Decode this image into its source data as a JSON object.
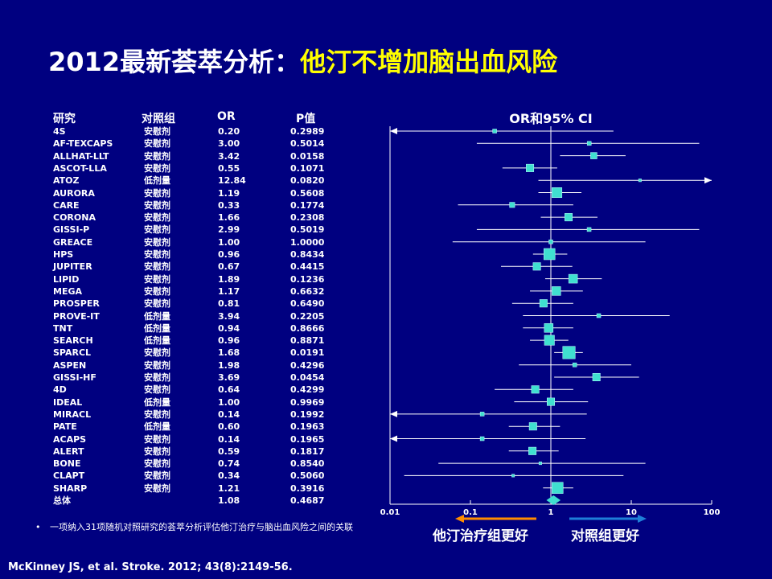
{
  "slide": {
    "title_prefix": "2012最新荟萃分析：",
    "title_highlight": "他汀不增加脑出血风险",
    "headers": {
      "study": "研究",
      "control": "对照组",
      "or": "OR",
      "p": "P值"
    },
    "footnote_bullet": "•",
    "footnote": "一项纳入31项随机对照研究的荟萃分析评估他汀治疗与脑出血风险之间的关联",
    "citation": "McKinney JS, et al. Stroke. 2012; 43(8):2149-56.",
    "favors_left": "他汀治疗组更好",
    "favors_right": "对照组更好",
    "colors": {
      "background": "#000080",
      "highlight": "#ffff00",
      "box": "#40e0d0",
      "arrow_left": "#ff8c00",
      "arrow_right": "#1e7fd8"
    }
  },
  "chart_data": {
    "type": "forest",
    "title": "OR和95% CI",
    "x_scale": "log",
    "xlim": [
      0.01,
      100
    ],
    "x_ticks": [
      0.01,
      0.1,
      1,
      10,
      100
    ],
    "x_tick_labels": [
      "0.01",
      "0.1",
      "1",
      "10",
      "100"
    ],
    "reference_line": 1,
    "studies": [
      {
        "name": "4S",
        "control": "安慰剂",
        "or": "0.20",
        "p": "0.2989",
        "ci": [
          0.01,
          6.0
        ],
        "w": 2
      },
      {
        "name": "AF-TEXCAPS",
        "control": "安慰剂",
        "or": "3.00",
        "p": "0.5014",
        "ci": [
          0.12,
          70
        ],
        "w": 2
      },
      {
        "name": "ALLHAT-LLT",
        "control": "安慰剂",
        "or": "3.42",
        "p": "0.0158",
        "ci": [
          1.3,
          8.5
        ],
        "w": 4
      },
      {
        "name": "ASCOT-LLA",
        "control": "安慰剂",
        "or": "0.55",
        "p": "0.1071",
        "ci": [
          0.25,
          1.2
        ],
        "w": 5
      },
      {
        "name": "ATOZ",
        "control": "低剂量",
        "or": "12.84",
        "p": "0.0820",
        "ci": [
          0.7,
          100
        ],
        "w": 1
      },
      {
        "name": "AURORA",
        "control": "安慰剂",
        "or": "1.19",
        "p": "0.5608",
        "ci": [
          0.7,
          2.4
        ],
        "w": 7
      },
      {
        "name": "CARE",
        "control": "安慰剂",
        "or": "0.33",
        "p": "0.1774",
        "ci": [
          0.07,
          1.9
        ],
        "w": 3
      },
      {
        "name": "CORONA",
        "control": "安慰剂",
        "or": "1.66",
        "p": "0.2308",
        "ci": [
          0.75,
          3.8
        ],
        "w": 5
      },
      {
        "name": "GISSI-P",
        "control": "安慰剂",
        "or": "2.99",
        "p": "0.5019",
        "ci": [
          0.12,
          70
        ],
        "w": 2
      },
      {
        "name": "GREACE",
        "control": "安慰剂",
        "or": "1.00",
        "p": "1.0000",
        "ci": [
          0.06,
          15
        ],
        "w": 2
      },
      {
        "name": "HPS",
        "control": "安慰剂",
        "or": "0.96",
        "p": "0.8434",
        "ci": [
          0.6,
          1.6
        ],
        "w": 8
      },
      {
        "name": "JUPITER",
        "control": "安慰剂",
        "or": "0.67",
        "p": "0.4415",
        "ci": [
          0.24,
          1.85
        ],
        "w": 5
      },
      {
        "name": "LIPID",
        "control": "安慰剂",
        "or": "1.89",
        "p": "0.1236",
        "ci": [
          0.85,
          4.3
        ],
        "w": 6
      },
      {
        "name": "MEGA",
        "control": "安慰剂",
        "or": "1.17",
        "p": "0.6632",
        "ci": [
          0.55,
          2.5
        ],
        "w": 6
      },
      {
        "name": "PROSPER",
        "control": "安慰剂",
        "or": "0.81",
        "p": "0.6490",
        "ci": [
          0.33,
          1.9
        ],
        "w": 5
      },
      {
        "name": "PROVE-IT",
        "control": "低剂量",
        "or": "3.94",
        "p": "0.2205",
        "ci": [
          0.45,
          30
        ],
        "w": 2
      },
      {
        "name": "TNT",
        "control": "低剂量",
        "or": "0.94",
        "p": "0.8666",
        "ci": [
          0.45,
          1.9
        ],
        "w": 6
      },
      {
        "name": "SEARCH",
        "control": "低剂量",
        "or": "0.96",
        "p": "0.8871",
        "ci": [
          0.55,
          1.65
        ],
        "w": 7
      },
      {
        "name": "SPARCL",
        "control": "安慰剂",
        "or": "1.68",
        "p": "0.0191",
        "ci": [
          1.1,
          2.5
        ],
        "w": 9
      },
      {
        "name": "ASPEN",
        "control": "安慰剂",
        "or": "1.98",
        "p": "0.4296",
        "ci": [
          0.4,
          10
        ],
        "w": 2
      },
      {
        "name": "GISSI-HF",
        "control": "安慰剂",
        "or": "3.69",
        "p": "0.0454",
        "ci": [
          1.1,
          12.5
        ],
        "w": 5
      },
      {
        "name": "4D",
        "control": "安慰剂",
        "or": "0.64",
        "p": "0.4299",
        "ci": [
          0.2,
          1.9
        ],
        "w": 5
      },
      {
        "name": "IDEAL",
        "control": "低剂量",
        "or": "1.00",
        "p": "0.9969",
        "ci": [
          0.35,
          2.9
        ],
        "w": 5
      },
      {
        "name": "MIRACL",
        "control": "安慰剂",
        "or": "0.14",
        "p": "0.1992",
        "ci": [
          0.01,
          2.8
        ],
        "w": 2
      },
      {
        "name": "PATE",
        "control": "低剂量",
        "or": "0.60",
        "p": "0.1963",
        "ci": [
          0.3,
          1.3
        ],
        "w": 5
      },
      {
        "name": "ACAPS",
        "control": "安慰剂",
        "or": "0.14",
        "p": "0.1965",
        "ci": [
          0.01,
          2.7
        ],
        "w": 2
      },
      {
        "name": "ALERT",
        "control": "安慰剂",
        "or": "0.59",
        "p": "0.1817",
        "ci": [
          0.3,
          1.25
        ],
        "w": 5
      },
      {
        "name": "BONE",
        "control": "安慰剂",
        "or": "0.74",
        "p": "0.8540",
        "ci": [
          0.04,
          15
        ],
        "w": 1
      },
      {
        "name": "CLAPT",
        "control": "安慰剂",
        "or": "0.34",
        "p": "0.5060",
        "ci": [
          0.015,
          8
        ],
        "w": 1
      },
      {
        "name": "SHARP",
        "control": "安慰剂",
        "or": "1.21",
        "p": "0.3916",
        "ci": [
          0.8,
          1.9
        ],
        "w": 8
      }
    ],
    "overall": {
      "name": "总体",
      "or": "1.08",
      "p": "0.4687",
      "ci": [
        0.88,
        1.32
      ]
    }
  }
}
